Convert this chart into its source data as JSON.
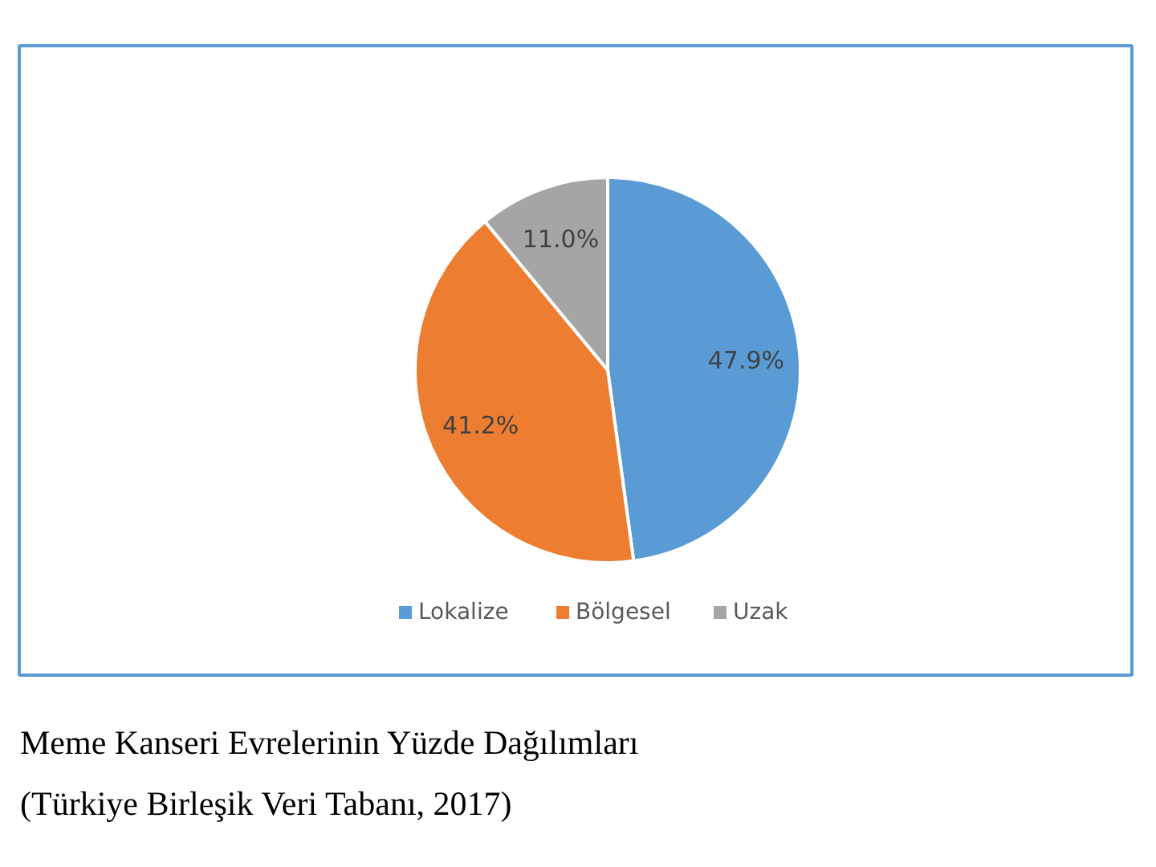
{
  "chart_data": {
    "type": "pie",
    "categories": [
      "Lokalize",
      "Bölgesel",
      "Uzak"
    ],
    "values": [
      47.9,
      41.2,
      11.0
    ],
    "colors": [
      "#5b9bd5",
      "#ed7d31",
      "#a5a5a5"
    ],
    "value_labels": [
      "47.9%",
      "41.2%",
      "11.0%"
    ],
    "legend": "bottom",
    "annotations": [
      "Meme Kanseri Evrelerinin Yüzde Dağılımları",
      "(Türkiye Birleşik Veri Tabanı, 2017)"
    ]
  }
}
